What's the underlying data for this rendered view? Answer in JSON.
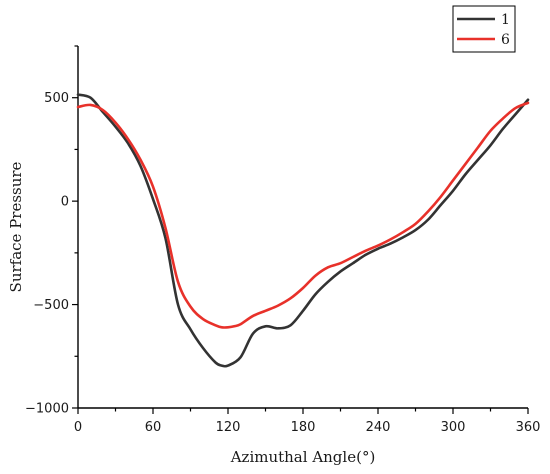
{
  "chart_data": {
    "type": "line",
    "title": "",
    "xlabel": "Azimuthal Angle(°)",
    "ylabel": "Surface Pressure",
    "xlim": [
      0,
      360
    ],
    "ylim": [
      -1000,
      750
    ],
    "x_ticks": [
      0,
      60,
      120,
      180,
      240,
      300,
      360
    ],
    "x_tick_labels": [
      "0",
      "60",
      "120",
      "180",
      "240",
      "300",
      "360"
    ],
    "y_ticks": [
      -1000,
      -500,
      0,
      500
    ],
    "y_tick_labels": [
      "−1000",
      "−500",
      "0",
      "500"
    ],
    "grid": false,
    "legend_position": "top-right",
    "series": [
      {
        "name": "1",
        "color": "#333333",
        "x": [
          0,
          10,
          20,
          30,
          40,
          50,
          60,
          70,
          80,
          90,
          100,
          110,
          115,
          120,
          130,
          140,
          150,
          160,
          170,
          180,
          190,
          200,
          210,
          220,
          230,
          240,
          250,
          260,
          270,
          280,
          290,
          300,
          310,
          320,
          330,
          340,
          350,
          360
        ],
        "y": [
          515,
          500,
          430,
          360,
          280,
          170,
          10,
          -180,
          -500,
          -620,
          -710,
          -780,
          -795,
          -795,
          -755,
          -640,
          -605,
          -615,
          -600,
          -530,
          -450,
          -390,
          -340,
          -300,
          -260,
          -230,
          -205,
          -175,
          -140,
          -90,
          -20,
          50,
          130,
          200,
          270,
          350,
          420,
          490
        ]
      },
      {
        "name": "6",
        "color": "#e8312a",
        "x": [
          0,
          10,
          20,
          30,
          40,
          50,
          60,
          70,
          80,
          90,
          100,
          110,
          115,
          120,
          125,
          130,
          140,
          150,
          160,
          170,
          180,
          190,
          200,
          210,
          220,
          230,
          240,
          250,
          260,
          270,
          280,
          290,
          300,
          310,
          320,
          330,
          340,
          350,
          360
        ],
        "y": [
          455,
          465,
          440,
          380,
          300,
          200,
          70,
          -130,
          -390,
          -510,
          -570,
          -600,
          -610,
          -610,
          -605,
          -595,
          -555,
          -530,
          -505,
          -470,
          -420,
          -360,
          -320,
          -300,
          -270,
          -240,
          -215,
          -185,
          -150,
          -110,
          -50,
          20,
          100,
          180,
          260,
          340,
          400,
          450,
          475
        ]
      }
    ]
  }
}
